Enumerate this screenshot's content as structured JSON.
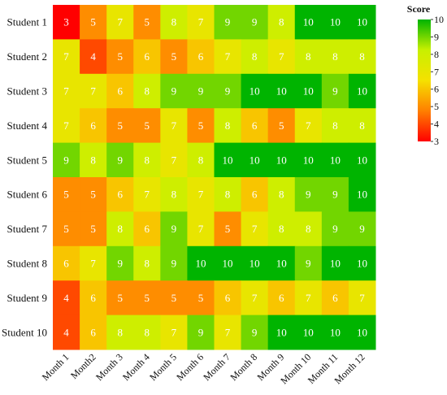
{
  "chart_data": {
    "type": "heatmap",
    "x": [
      "Month 1",
      "Month2",
      "Month 3",
      "Month 4",
      "Month 5",
      "Month 6",
      "Month 7",
      "Month 8",
      "Month 9",
      "Month 10",
      "Month 11",
      "Month 12"
    ],
    "y": [
      "Student 1",
      "Student 2",
      "Student 3",
      "Student 4",
      "Student 5",
      "Student 6",
      "Student 7",
      "Student 8",
      "Student 9",
      "Student 10"
    ],
    "values": [
      [
        3,
        5,
        7,
        5,
        8,
        7,
        9,
        9,
        8,
        10,
        10,
        10
      ],
      [
        7,
        4,
        5,
        6,
        5,
        6,
        7,
        8,
        7,
        8,
        8,
        8
      ],
      [
        7,
        7,
        6,
        8,
        9,
        9,
        9,
        10,
        10,
        10,
        9,
        10
      ],
      [
        7,
        6,
        5,
        5,
        7,
        5,
        8,
        6,
        5,
        7,
        8,
        8
      ],
      [
        9,
        8,
        9,
        8,
        7,
        8,
        10,
        10,
        10,
        10,
        10,
        10
      ],
      [
        5,
        5,
        6,
        7,
        8,
        7,
        8,
        6,
        8,
        9,
        9,
        10
      ],
      [
        5,
        5,
        8,
        6,
        9,
        7,
        5,
        7,
        8,
        8,
        9,
        9
      ],
      [
        6,
        7,
        9,
        8,
        9,
        10,
        10,
        10,
        10,
        9,
        10,
        10
      ],
      [
        4,
        6,
        5,
        5,
        5,
        5,
        6,
        7,
        6,
        7,
        6,
        7
      ],
      [
        4,
        6,
        8,
        8,
        7,
        9,
        7,
        9,
        10,
        10,
        10,
        10
      ]
    ],
    "colorbar": {
      "title": "Score",
      "range": [
        3,
        10
      ],
      "ticks": [
        3,
        4,
        5,
        6,
        7,
        8,
        9,
        10
      ],
      "colors": [
        "#ff0000",
        "#ff7f00",
        "#f5e100",
        "#c8f000",
        "#00b400"
      ]
    },
    "title": "",
    "xlabel": "",
    "ylabel": ""
  }
}
